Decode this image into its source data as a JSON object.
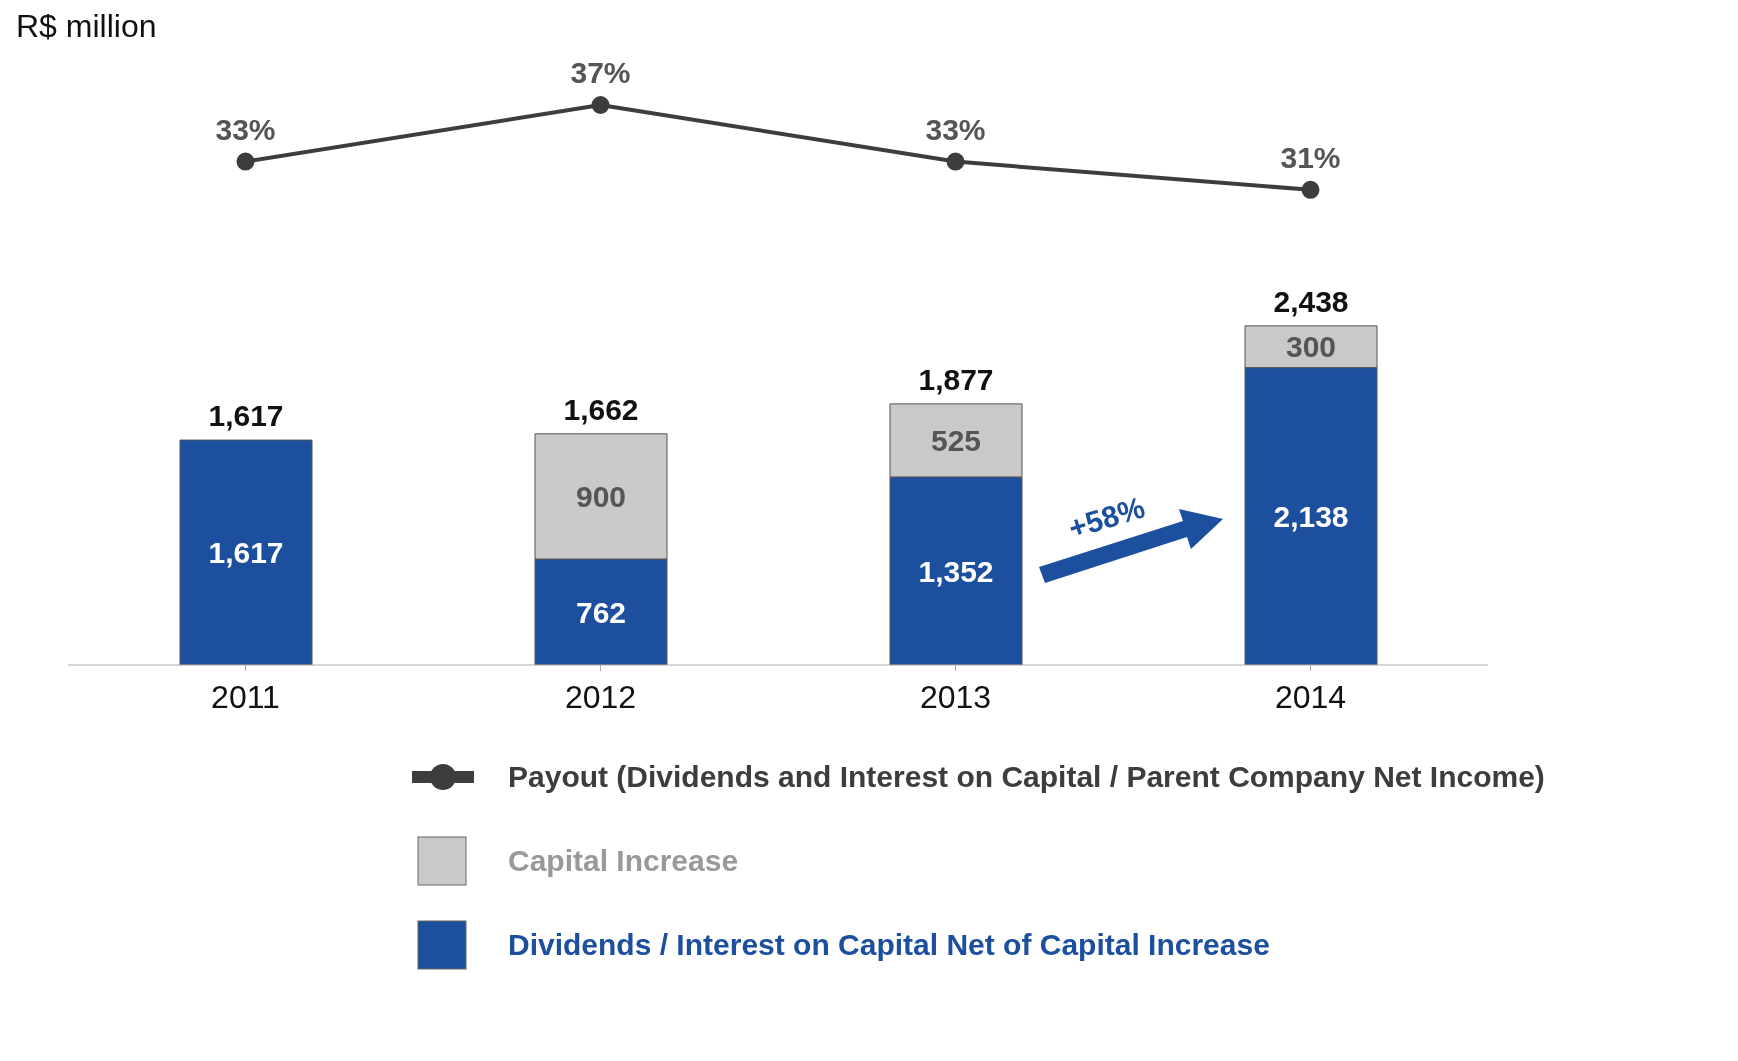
{
  "chart_data": [
    {
      "type": "line",
      "categories": [
        null,
        null,
        null,
        null
      ],
      "tick_labels": false,
      "legend": "bottom",
      "annotations": [
        "R$ million"
      ],
      "series": [
        {
          "name": "Payout (Dividends and Interest on Capital / Parent Company Net Income)",
          "color": "#3d3d3d",
          "marker": "circle",
          "values": [
            33,
            37,
            33,
            31
          ],
          "value_labels": [
            "33%",
            "37%",
            "33%",
            "31%"
          ]
        }
      ]
    },
    {
      "type": "bar",
      "categories": [
        "2011",
        "2012",
        "2013",
        "2014"
      ],
      "stacked": true,
      "tick_labels": "x",
      "legend": "bottom",
      "series": [
        {
          "name": "Dividends / Interest on Capital Net of Capital Increase",
          "color": "#1c4f9e",
          "values": [
            1617,
            762,
            1352,
            2138
          ],
          "value_labels": [
            "1,617",
            "762",
            "1,352",
            "2,138"
          ]
        },
        {
          "name": "Capital Increase",
          "color": "#c9c9c9",
          "values": [
            null,
            900,
            525,
            300
          ],
          "value_labels": [
            null,
            "900",
            "525",
            "300"
          ]
        }
      ],
      "totals": [
        "1,617",
        "1,662",
        "1,877",
        "2,438"
      ],
      "annotations": [
        "+58%"
      ]
    }
  ]
}
